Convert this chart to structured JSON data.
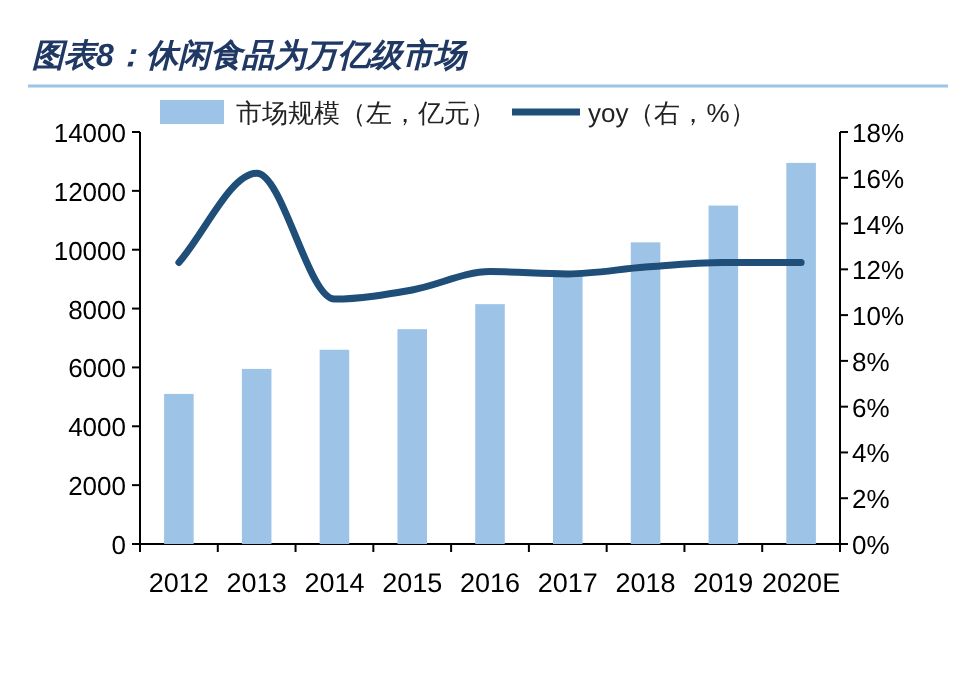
{
  "chart_data": {
    "type": "bar",
    "title": "图表8：休闲食品为万亿级市场",
    "categories": [
      "2012",
      "2013",
      "2014",
      "2015",
      "2016",
      "2017",
      "2018",
      "2019",
      "2020E"
    ],
    "series": [
      {
        "name": "市场规模（左，亿元）",
        "color": "#9dc3e6",
        "values": [
          5100,
          5950,
          6600,
          7300,
          8150,
          9150,
          10250,
          11500,
          12950
        ]
      },
      {
        "name": "yoy（右，%）",
        "type": "line",
        "axis": "y2",
        "color": "#1f4e79",
        "values": [
          12.3,
          16.2,
          10.7,
          11.1,
          11.9,
          11.8,
          12.1,
          12.3,
          12.3
        ]
      }
    ],
    "ylim": [
      0,
      14000
    ],
    "yticks": [
      0,
      2000,
      4000,
      6000,
      8000,
      10000,
      12000,
      14000
    ],
    "y2lim": [
      0,
      18
    ],
    "y2ticks": [
      {
        "value": 0,
        "label": "0%"
      },
      {
        "value": 2,
        "label": "2%"
      },
      {
        "value": 4,
        "label": "4%"
      },
      {
        "value": 6,
        "label": "6%"
      },
      {
        "value": 8,
        "label": "8%"
      },
      {
        "value": 10,
        "label": "10%"
      },
      {
        "value": 12,
        "label": "12%"
      },
      {
        "value": 14,
        "label": "14%"
      },
      {
        "value": 16,
        "label": "16%"
      },
      {
        "value": 18,
        "label": "18%"
      }
    ],
    "legend": "top",
    "grid": false,
    "marker": "none",
    "line_style": "solid"
  }
}
